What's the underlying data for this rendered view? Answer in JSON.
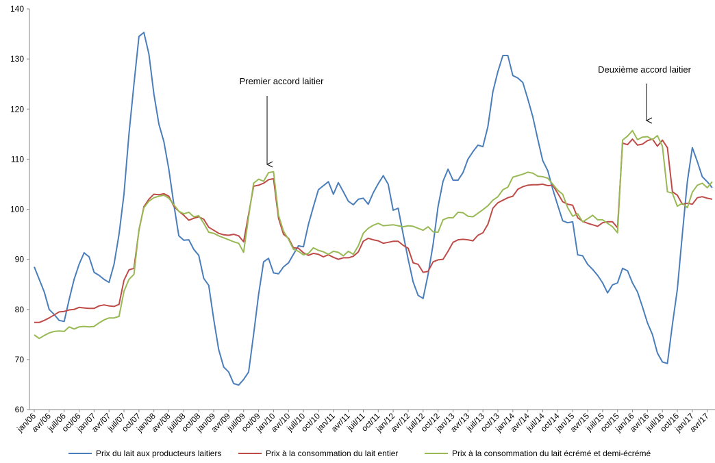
{
  "chart_data": {
    "type": "line",
    "annotations": [
      "Premier accord laitier",
      "Deuxième accord laitier"
    ],
    "categories": [
      "jan/06",
      null,
      null,
      "avr/06",
      null,
      null,
      "juil/06",
      null,
      null,
      "oct/06",
      null,
      null,
      "jan/07",
      null,
      null,
      "avr/07",
      null,
      null,
      "juil/07",
      null,
      null,
      "oct/07",
      null,
      null,
      "jan/08",
      null,
      null,
      "avr/08",
      null,
      null,
      "juil/08",
      null,
      null,
      "oct/08",
      null,
      null,
      "jan/09",
      null,
      null,
      "avr/09",
      null,
      null,
      "juil/09",
      null,
      null,
      "oct/09",
      null,
      null,
      "jan/10",
      null,
      null,
      "avr/10",
      null,
      null,
      "juil/10",
      null,
      null,
      "oct/10",
      null,
      null,
      "jan/11",
      null,
      null,
      "avr/11",
      null,
      null,
      "juil/11",
      null,
      null,
      "oct/11",
      null,
      null,
      "jan/12",
      null,
      null,
      "avr/12",
      null,
      null,
      "juil/12",
      null,
      null,
      "oct/12",
      null,
      null,
      "jan/13",
      null,
      null,
      "avr/13",
      null,
      null,
      "juil/13",
      null,
      null,
      "oct/13",
      null,
      null,
      "jan/14",
      null,
      null,
      "avr/14",
      null,
      null,
      "juil/14",
      null,
      null,
      "oct/14",
      null,
      null,
      "jan/15",
      null,
      null,
      "avr/15",
      null,
      null,
      "juil/15",
      null,
      null,
      "oct/15",
      null,
      null,
      "jan/16",
      null,
      null,
      "avr/16",
      null,
      null,
      "juil/16",
      null,
      null,
      "oct/16",
      null,
      null,
      "jan/17",
      null,
      null,
      "avr/17",
      null
    ],
    "series": [
      {
        "name": "Prix du lait aux producteurs laitiers",
        "color": "#4a7ebb",
        "values": [
          88.5,
          86,
          83.5,
          80,
          79,
          77.8,
          77.6,
          82,
          86,
          89,
          91.3,
          90.5,
          87.4,
          86.8,
          86,
          85.4,
          89,
          95,
          103,
          115,
          125,
          134.5,
          135.3,
          131,
          123,
          117,
          113.5,
          108,
          101,
          94.7,
          93.8,
          93.9,
          92,
          90.8,
          86.2,
          84.8,
          78,
          72,
          68.5,
          67.5,
          65.2,
          64.9,
          66,
          67.5,
          75,
          83,
          89.5,
          90.2,
          87.3,
          87.1,
          88.5,
          89.3,
          91,
          92.7,
          92.5,
          97,
          100.5,
          103.9,
          104.7,
          105.5,
          103,
          105.3,
          103.5,
          101.6,
          100.9,
          102,
          102.2,
          101,
          103.3,
          105.1,
          106.7,
          105,
          99.8,
          100.2,
          95,
          90,
          85.5,
          82.8,
          82.2,
          87,
          93,
          100.5,
          105.6,
          108,
          105.8,
          105.8,
          107.3,
          110,
          111.5,
          112.8,
          112.5,
          116.5,
          123.5,
          127.5,
          130.7,
          130.7,
          126.7,
          126.2,
          125.3,
          122,
          118.5,
          114,
          109.7,
          107.7,
          104,
          100.8,
          97.7,
          97.3,
          97.5,
          90.9,
          90.7,
          89,
          88,
          86.8,
          85.3,
          83.3,
          84.9,
          85.3,
          88.2,
          87.7,
          85.3,
          83.5,
          80.5,
          77.3,
          75,
          71.3,
          69.5,
          69.2,
          77,
          84,
          95,
          105.5,
          112.3,
          109.5,
          106.5,
          105.5,
          104.3
        ]
      },
      {
        "name": "Prix à la consommation du lait entier",
        "color": "#be4b48",
        "values": [
          77.4,
          77.4,
          77.8,
          78.3,
          78.9,
          79.5,
          79.6,
          79.9,
          80,
          80.4,
          80.3,
          80.2,
          80.2,
          80.7,
          80.9,
          80.7,
          80.6,
          81,
          85.8,
          87.9,
          88.2,
          95.8,
          100.5,
          102,
          103,
          102.9,
          103.1,
          102.6,
          100.6,
          99.6,
          98.8,
          97.8,
          98.2,
          98.5,
          98,
          96.4,
          95.8,
          95.2,
          94.9,
          94.8,
          95,
          94.7,
          93.5,
          99,
          104.6,
          104.8,
          105.2,
          105.9,
          106.1,
          98.2,
          95,
          94.2,
          92.3,
          92.2,
          91.3,
          90.8,
          91.2,
          91,
          90.5,
          90.9,
          90.4,
          90,
          90.3,
          90.3,
          90.6,
          91.5,
          93.6,
          94.2,
          93.9,
          93.7,
          93.2,
          93.4,
          93.6,
          93.6,
          92.8,
          92.2,
          89.3,
          89,
          87.4,
          87.6,
          89.5,
          89.9,
          90,
          91.6,
          93.4,
          93.9,
          94,
          93.9,
          93.7,
          94.8,
          95.3,
          97,
          100.2,
          101.3,
          101.8,
          102.3,
          102.6,
          104,
          104.5,
          104.8,
          104.9,
          104.9,
          105,
          104.7,
          104.8,
          103.2,
          101.5,
          101,
          100.8,
          98.3,
          97.6,
          97.2,
          96.9,
          96.6,
          97.3,
          97.5,
          97.5,
          96.3,
          113.2,
          112.9,
          114,
          112.8,
          113,
          113.7,
          114,
          112.6,
          113.8,
          112.3,
          103.5,
          102.8,
          101,
          101.2,
          101,
          102.3,
          102.5,
          102.2,
          102
        ]
      },
      {
        "name": "Prix à la consommation du lait écrémé et demi-écrémé",
        "color": "#98b954",
        "values": [
          74.9,
          74.2,
          74.8,
          75.3,
          75.6,
          75.7,
          75.6,
          76.5,
          76.1,
          76.5,
          76.6,
          76.5,
          76.6,
          77.3,
          77.9,
          78.3,
          78.3,
          78.6,
          83.6,
          86,
          87,
          96,
          100.3,
          101.6,
          102.3,
          102.6,
          102.8,
          102.2,
          100.9,
          99.6,
          99.1,
          99.4,
          98.5,
          98.7,
          97.2,
          95.4,
          95.2,
          94.7,
          94.3,
          93.9,
          93.5,
          93.2,
          91.4,
          98.5,
          105.2,
          106,
          105.6,
          107.3,
          107.5,
          98.8,
          95.6,
          94,
          92,
          91.6,
          90.9,
          91.2,
          92.3,
          91.8,
          91.5,
          91,
          91.6,
          91.4,
          90.7,
          91.6,
          91,
          92.7,
          95.2,
          96.2,
          96.8,
          97.2,
          96.7,
          96.8,
          96.9,
          96.7,
          96.5,
          96.7,
          96.6,
          96.2,
          95.8,
          96.5,
          95.5,
          95.4,
          97.9,
          98.3,
          98.3,
          99.4,
          99.3,
          98.6,
          98.5,
          99.2,
          99.9,
          100.7,
          101.8,
          102.5,
          103.9,
          104.4,
          106.4,
          106.7,
          107,
          107.4,
          107.2,
          106.6,
          106.5,
          106.2,
          105,
          103.8,
          103,
          100.3,
          98.6,
          99.1,
          97.5,
          98.1,
          98.8,
          97.9,
          97.9,
          97.2,
          96.5,
          95.3,
          113.8,
          114.6,
          115.7,
          113.9,
          114.4,
          114.5,
          113.9,
          114.7,
          112.6,
          103.5,
          103.2,
          100.6,
          101.2,
          100.3,
          103.4,
          104.8,
          105.2,
          104.3,
          105.5
        ]
      }
    ],
    "ylim": [
      60,
      140
    ],
    "yticks": [
      60,
      70,
      80,
      90,
      100,
      110,
      120,
      130,
      140
    ],
    "grid": false,
    "legend": "bottom"
  }
}
